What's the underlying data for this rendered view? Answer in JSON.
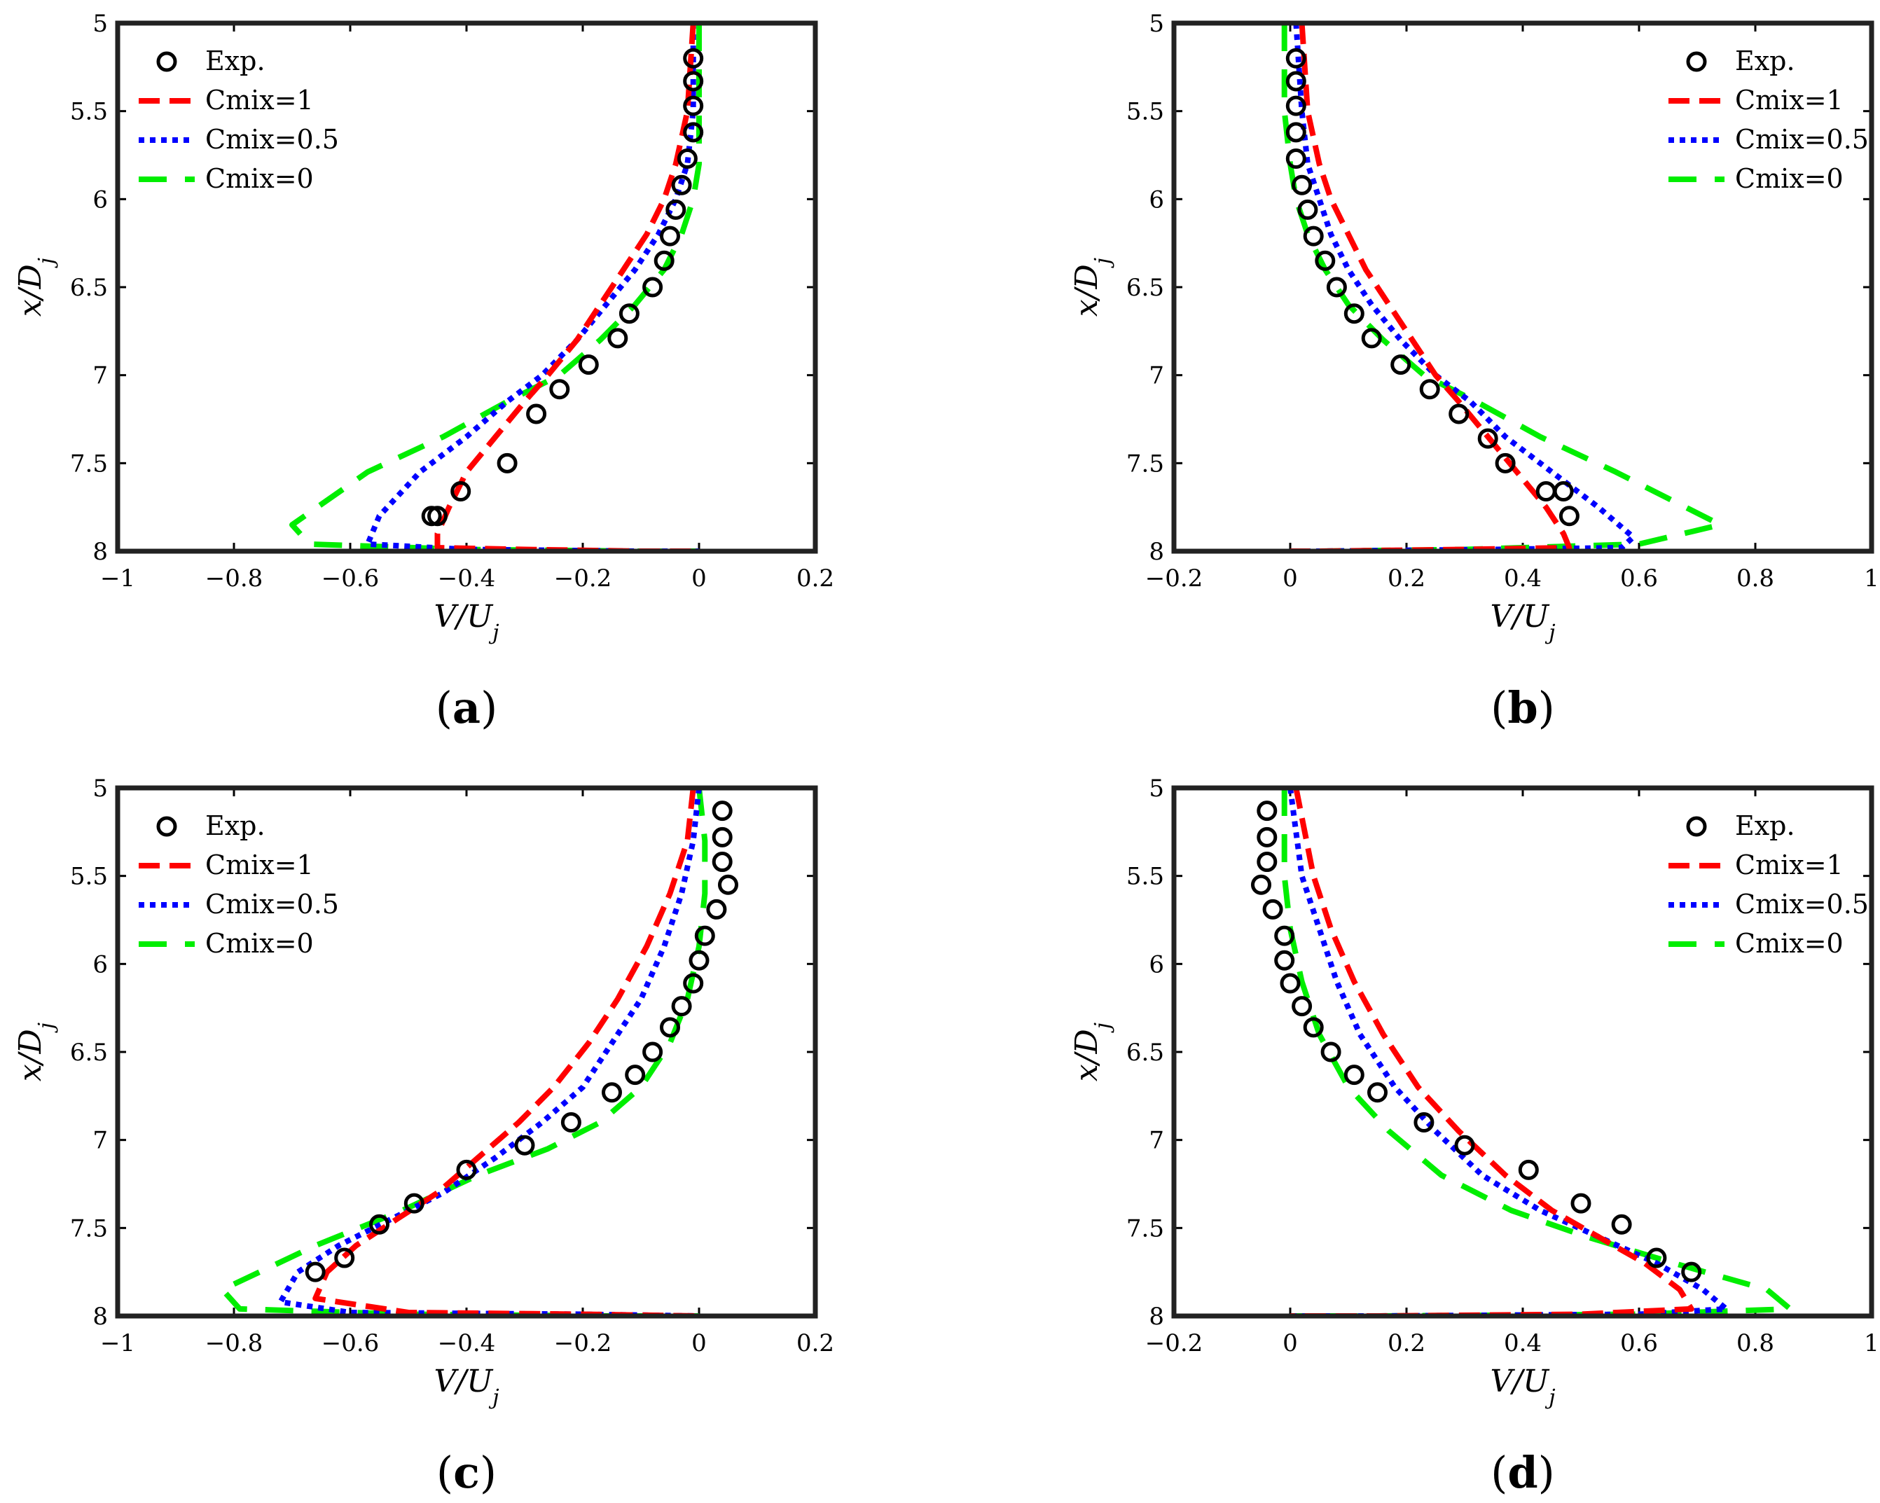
{
  "figure": {
    "panels": [
      "(a)",
      "(b)",
      "(c)",
      "(d)"
    ],
    "panel_parts": [
      {
        "open": "(",
        "letter": "a",
        "close": ")"
      },
      {
        "open": "(",
        "letter": "b",
        "close": ")"
      },
      {
        "open": "(",
        "letter": "c",
        "close": ")"
      },
      {
        "open": "(",
        "letter": "d",
        "close": ")"
      }
    ]
  },
  "colors": {
    "exp": "#000000",
    "cmix1": "#ff0000",
    "cmix05": "#0000ff",
    "cmix0": "#00ee00"
  },
  "chart_data": [
    {
      "type": "line",
      "panel": "(a)",
      "xlabel": "V/U_j",
      "ylabel": "x/D_j",
      "xlim": [
        -1,
        0.2
      ],
      "ylim": [
        5,
        8
      ],
      "y_reversed": true,
      "xticks": [
        -1,
        -0.8,
        -0.6,
        -0.4,
        -0.2,
        0,
        0.2
      ],
      "xtick_labels": [
        "−1",
        "−0.8",
        "−0.6",
        "−0.4",
        "−0.2",
        "0",
        "0.2"
      ],
      "yticks": [
        5,
        5.5,
        6,
        6.5,
        7,
        7.5,
        8
      ],
      "ytick_labels": [
        "5",
        "5.5",
        "6",
        "6.5",
        "7",
        "7.5",
        "8"
      ],
      "legend_position": "top-left",
      "series": [
        {
          "name": "Exp.",
          "style": "markers",
          "x": [
            -0.01,
            -0.01,
            -0.01,
            -0.01,
            -0.02,
            -0.03,
            -0.04,
            -0.05,
            -0.06,
            -0.08,
            -0.12,
            -0.14,
            -0.19,
            -0.24,
            -0.28,
            -0.33,
            -0.41,
            -0.45,
            -0.46
          ],
          "y": [
            5.2,
            5.33,
            5.47,
            5.62,
            5.77,
            5.92,
            6.06,
            6.21,
            6.35,
            6.5,
            6.65,
            6.79,
            6.94,
            7.08,
            7.22,
            7.5,
            7.66,
            7.8,
            7.8
          ]
        },
        {
          "name": "Cmix=1",
          "style": "dashed",
          "x": [
            -0.01,
            -0.02,
            -0.04,
            -0.06,
            -0.09,
            -0.13,
            -0.17,
            -0.21,
            -0.26,
            -0.3,
            -0.35,
            -0.4,
            -0.43,
            -0.45,
            -0.45,
            -0.3,
            -0.1,
            0.0
          ],
          "y": [
            5.0,
            5.5,
            5.8,
            6.0,
            6.2,
            6.4,
            6.6,
            6.8,
            7.0,
            7.15,
            7.35,
            7.55,
            7.75,
            7.9,
            7.98,
            7.99,
            8.0,
            8.0
          ]
        },
        {
          "name": "Cmix=0.5",
          "style": "dotted",
          "x": [
            -0.01,
            -0.01,
            -0.02,
            -0.04,
            -0.07,
            -0.11,
            -0.16,
            -0.21,
            -0.27,
            -0.33,
            -0.4,
            -0.48,
            -0.55,
            -0.57,
            -0.4,
            -0.1,
            0.0
          ],
          "y": [
            5.0,
            5.5,
            5.8,
            6.0,
            6.2,
            6.4,
            6.6,
            6.8,
            7.0,
            7.15,
            7.35,
            7.55,
            7.8,
            7.96,
            7.99,
            8.0,
            8.0
          ]
        },
        {
          "name": "Cmix=0",
          "style": "dashed",
          "x": [
            0.0,
            0.0,
            0.0,
            -0.01,
            -0.03,
            -0.06,
            -0.11,
            -0.17,
            -0.24,
            -0.33,
            -0.44,
            -0.57,
            -0.7,
            -0.67,
            -0.4,
            -0.1,
            0.0
          ],
          "y": [
            5.0,
            5.5,
            5.8,
            6.0,
            6.2,
            6.4,
            6.6,
            6.8,
            7.0,
            7.15,
            7.35,
            7.55,
            7.85,
            7.96,
            7.99,
            8.0,
            8.0
          ]
        }
      ]
    },
    {
      "type": "line",
      "panel": "(b)",
      "xlabel": "V/U_j",
      "ylabel": "x/D_j",
      "xlim": [
        -0.2,
        1
      ],
      "ylim": [
        5,
        8
      ],
      "y_reversed": true,
      "xticks": [
        -0.2,
        0,
        0.2,
        0.4,
        0.6,
        0.8,
        1
      ],
      "xtick_labels": [
        "−0.2",
        "0",
        "0.2",
        "0.4",
        "0.6",
        "0.8",
        "1"
      ],
      "yticks": [
        5,
        5.5,
        6,
        6.5,
        7,
        7.5,
        8
      ],
      "ytick_labels": [
        "5",
        "5.5",
        "6",
        "6.5",
        "7",
        "7.5",
        "8"
      ],
      "legend_position": "top-right",
      "series": [
        {
          "name": "Exp.",
          "style": "markers",
          "x": [
            0.01,
            0.01,
            0.01,
            0.01,
            0.01,
            0.02,
            0.03,
            0.04,
            0.06,
            0.08,
            0.11,
            0.14,
            0.19,
            0.24,
            0.29,
            0.34,
            0.37,
            0.44,
            0.47,
            0.48
          ],
          "y": [
            5.2,
            5.33,
            5.47,
            5.62,
            5.77,
            5.92,
            6.06,
            6.21,
            6.35,
            6.5,
            6.65,
            6.79,
            6.94,
            7.08,
            7.22,
            7.36,
            7.5,
            7.66,
            7.66,
            7.8
          ]
        },
        {
          "name": "Cmix=1",
          "style": "dashed",
          "x": [
            0.02,
            0.03,
            0.05,
            0.07,
            0.1,
            0.13,
            0.17,
            0.21,
            0.25,
            0.29,
            0.34,
            0.39,
            0.44,
            0.47,
            0.48,
            0.3,
            0.05,
            0.0
          ],
          "y": [
            5.0,
            5.5,
            5.8,
            6.0,
            6.2,
            6.4,
            6.6,
            6.8,
            7.0,
            7.15,
            7.35,
            7.55,
            7.75,
            7.9,
            7.98,
            7.99,
            8.0,
            8.0
          ]
        },
        {
          "name": "Cmix=0.5",
          "style": "dotted",
          "x": [
            0.01,
            0.02,
            0.03,
            0.05,
            0.07,
            0.1,
            0.14,
            0.19,
            0.25,
            0.31,
            0.37,
            0.45,
            0.53,
            0.59,
            0.57,
            0.35,
            0.05,
            0.0
          ],
          "y": [
            5.0,
            5.5,
            5.8,
            6.0,
            6.2,
            6.4,
            6.6,
            6.8,
            7.0,
            7.15,
            7.35,
            7.55,
            7.75,
            7.92,
            7.98,
            7.99,
            8.0,
            8.0
          ]
        },
        {
          "name": "Cmix=0",
          "style": "dashed",
          "x": [
            -0.01,
            -0.01,
            0.0,
            0.01,
            0.03,
            0.06,
            0.1,
            0.16,
            0.23,
            0.32,
            0.43,
            0.56,
            0.68,
            0.74,
            0.6,
            0.3,
            0.05,
            0.0
          ],
          "y": [
            5.0,
            5.5,
            5.8,
            6.0,
            6.2,
            6.4,
            6.6,
            6.8,
            7.0,
            7.15,
            7.35,
            7.55,
            7.75,
            7.85,
            7.96,
            7.99,
            8.0,
            8.0
          ]
        }
      ]
    },
    {
      "type": "line",
      "panel": "(c)",
      "xlabel": "V/U_j",
      "ylabel": "x/D_j",
      "xlim": [
        -1,
        0.2
      ],
      "ylim": [
        5,
        8
      ],
      "y_reversed": true,
      "xticks": [
        -1,
        -0.8,
        -0.6,
        -0.4,
        -0.2,
        0,
        0.2
      ],
      "xtick_labels": [
        "−1",
        "−0.8",
        "−0.6",
        "−0.4",
        "−0.2",
        "0",
        "0.2"
      ],
      "yticks": [
        5,
        5.5,
        6,
        6.5,
        7,
        7.5,
        8
      ],
      "ytick_labels": [
        "5",
        "5.5",
        "6",
        "6.5",
        "7",
        "7.5",
        "8"
      ],
      "legend_position": "top-left",
      "series": [
        {
          "name": "Exp.",
          "style": "markers",
          "x": [
            0.04,
            0.04,
            0.04,
            0.05,
            0.03,
            0.01,
            0.0,
            -0.01,
            -0.03,
            -0.05,
            -0.08,
            -0.11,
            -0.15,
            -0.22,
            -0.3,
            -0.4,
            -0.49,
            -0.55,
            -0.61,
            -0.66
          ],
          "y": [
            5.13,
            5.28,
            5.42,
            5.55,
            5.69,
            5.84,
            5.98,
            6.11,
            6.24,
            6.36,
            6.5,
            6.63,
            6.73,
            6.9,
            7.03,
            7.17,
            7.36,
            7.48,
            7.67,
            7.75
          ]
        },
        {
          "name": "Cmix=1",
          "style": "dashed",
          "x": [
            -0.01,
            -0.02,
            -0.05,
            -0.09,
            -0.14,
            -0.19,
            -0.25,
            -0.31,
            -0.38,
            -0.45,
            -0.52,
            -0.59,
            -0.64,
            -0.66,
            -0.5,
            -0.2,
            0.0
          ],
          "y": [
            5.0,
            5.3,
            5.6,
            5.9,
            6.2,
            6.45,
            6.7,
            6.9,
            7.1,
            7.3,
            7.45,
            7.6,
            7.75,
            7.9,
            7.98,
            7.99,
            8.0
          ]
        },
        {
          "name": "Cmix=0.5",
          "style": "dotted",
          "x": [
            0.0,
            -0.01,
            -0.03,
            -0.06,
            -0.1,
            -0.15,
            -0.2,
            -0.27,
            -0.35,
            -0.44,
            -0.53,
            -0.62,
            -0.69,
            -0.72,
            -0.6,
            -0.2,
            0.0
          ],
          "y": [
            5.0,
            5.3,
            5.6,
            5.9,
            6.2,
            6.45,
            6.7,
            6.9,
            7.1,
            7.3,
            7.45,
            7.6,
            7.75,
            7.92,
            7.98,
            7.99,
            8.0
          ]
        },
        {
          "name": "Cmix=0",
          "style": "dashed",
          "x": [
            0.0,
            0.01,
            0.01,
            0.0,
            -0.02,
            -0.05,
            -0.1,
            -0.17,
            -0.26,
            -0.38,
            -0.51,
            -0.66,
            -0.82,
            -0.79,
            -0.5,
            -0.15,
            0.0
          ],
          "y": [
            5.0,
            5.3,
            5.6,
            5.9,
            6.2,
            6.45,
            6.7,
            6.9,
            7.05,
            7.2,
            7.4,
            7.6,
            7.85,
            7.96,
            7.99,
            8.0,
            8.0
          ]
        }
      ]
    },
    {
      "type": "line",
      "panel": "(d)",
      "xlabel": "V/U_j",
      "ylabel": "x/D_j",
      "xlim": [
        -0.2,
        1
      ],
      "ylim": [
        5,
        8
      ],
      "y_reversed": true,
      "xticks": [
        -0.2,
        0,
        0.2,
        0.4,
        0.6,
        0.8,
        1
      ],
      "xtick_labels": [
        "−0.2",
        "0",
        "0.2",
        "0.4",
        "0.6",
        "0.8",
        "1"
      ],
      "yticks": [
        5,
        5.5,
        6,
        6.5,
        7,
        7.5,
        8
      ],
      "ytick_labels": [
        "5",
        "5.5",
        "6",
        "6.5",
        "7",
        "7.5",
        "8"
      ],
      "legend_position": "top-right",
      "series": [
        {
          "name": "Exp.",
          "style": "markers",
          "x": [
            -0.04,
            -0.04,
            -0.04,
            -0.05,
            -0.03,
            -0.01,
            -0.01,
            0.0,
            0.02,
            0.04,
            0.07,
            0.11,
            0.15,
            0.23,
            0.3,
            0.41,
            0.5,
            0.57,
            0.63,
            0.69
          ],
          "y": [
            5.13,
            5.28,
            5.42,
            5.55,
            5.69,
            5.84,
            5.98,
            6.11,
            6.24,
            6.36,
            6.5,
            6.63,
            6.73,
            6.9,
            7.03,
            7.17,
            7.36,
            7.48,
            7.67,
            7.75
          ]
        },
        {
          "name": "Cmix=1",
          "style": "dashed",
          "x": [
            0.01,
            0.04,
            0.07,
            0.11,
            0.16,
            0.22,
            0.29,
            0.37,
            0.45,
            0.53,
            0.61,
            0.67,
            0.69,
            0.5,
            0.15,
            0.0
          ],
          "y": [
            5.0,
            5.5,
            5.8,
            6.1,
            6.4,
            6.7,
            6.95,
            7.2,
            7.4,
            7.55,
            7.7,
            7.85,
            7.96,
            7.99,
            8.0,
            8.0
          ]
        },
        {
          "name": "Cmix=0.5",
          "style": "dotted",
          "x": [
            0.0,
            0.02,
            0.05,
            0.08,
            0.12,
            0.18,
            0.25,
            0.33,
            0.43,
            0.53,
            0.63,
            0.71,
            0.75,
            0.6,
            0.15,
            0.0
          ],
          "y": [
            5.0,
            5.5,
            5.8,
            6.1,
            6.4,
            6.7,
            6.95,
            7.2,
            7.4,
            7.55,
            7.7,
            7.85,
            7.96,
            7.99,
            8.0,
            8.0
          ]
        },
        {
          "name": "Cmix=0",
          "style": "dashed",
          "x": [
            -0.01,
            -0.01,
            0.0,
            0.02,
            0.05,
            0.1,
            0.17,
            0.26,
            0.38,
            0.51,
            0.66,
            0.82,
            0.86,
            0.6,
            0.15,
            0.0
          ],
          "y": [
            5.0,
            5.5,
            5.8,
            6.1,
            6.4,
            6.7,
            6.95,
            7.2,
            7.4,
            7.55,
            7.7,
            7.85,
            7.96,
            7.99,
            8.0,
            8.0
          ]
        }
      ]
    }
  ]
}
